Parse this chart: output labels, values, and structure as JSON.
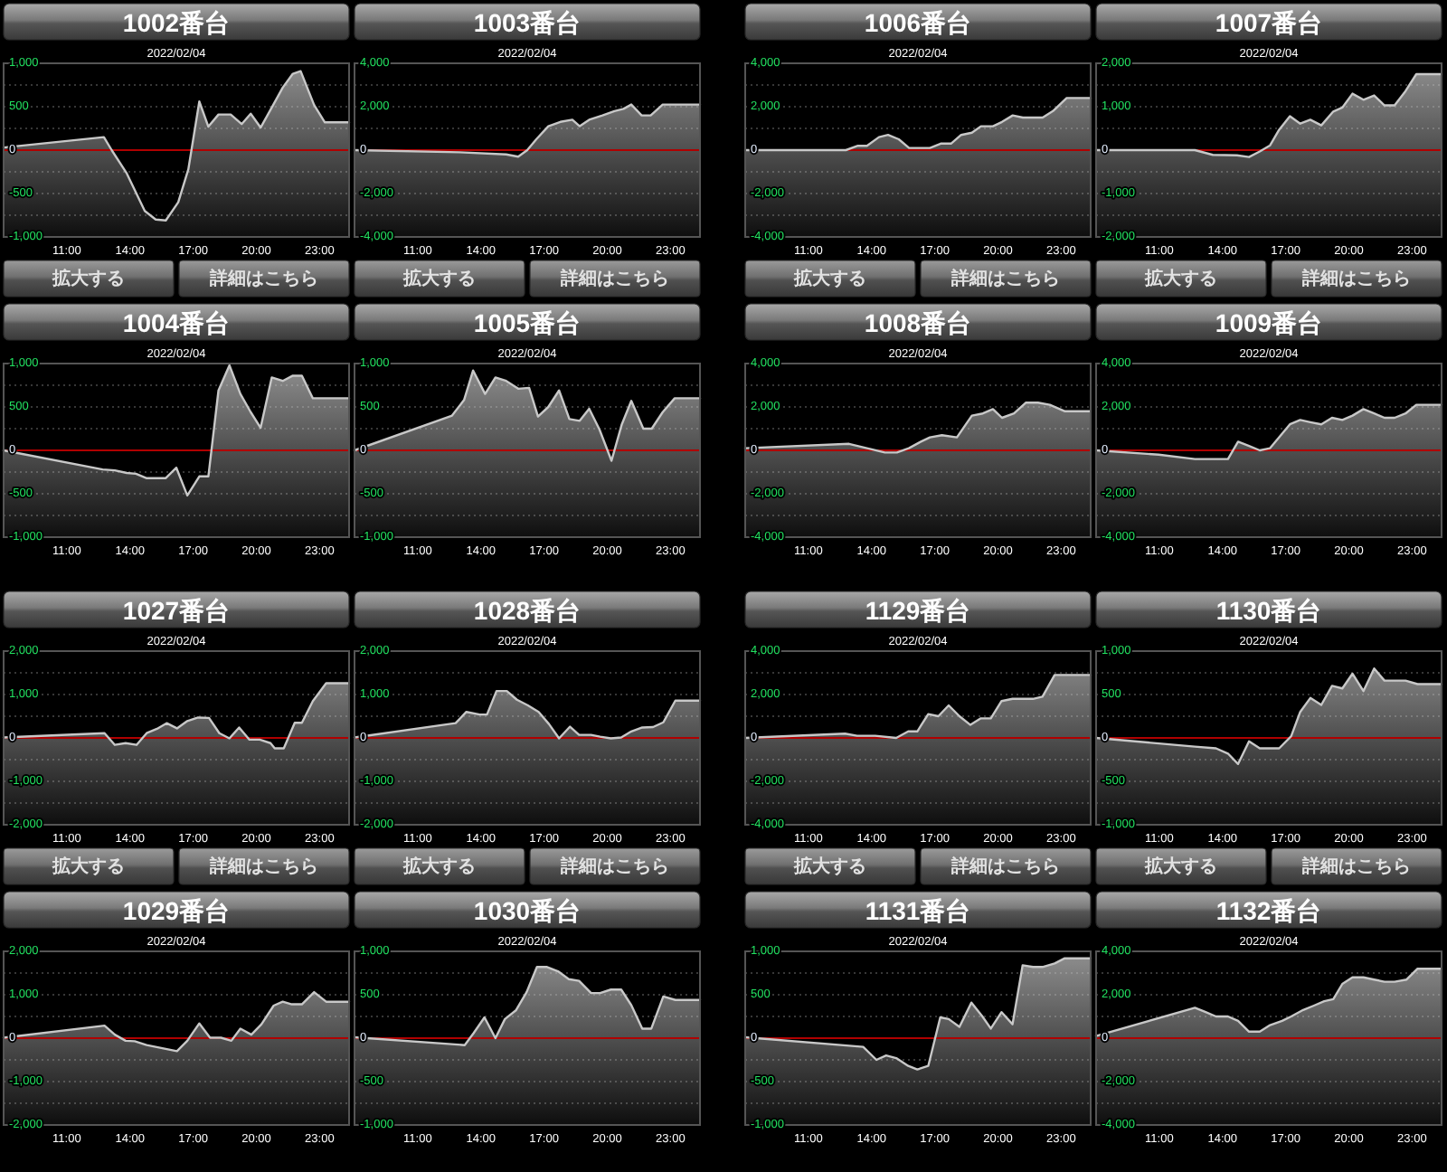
{
  "chart_data": [
    {
      "type": "line",
      "title": "1002番台",
      "subtitle": "2022/02/04",
      "color": "#c8c8c8",
      "grid": "y",
      "xlim": [
        8,
        24.4
      ],
      "xticks": [
        {
          "value": 11,
          "label": "11:00"
        },
        {
          "value": 14,
          "label": "14:00"
        },
        {
          "value": 17,
          "label": "17:00"
        },
        {
          "value": 20,
          "label": "20:00"
        },
        {
          "value": 23,
          "label": "23:00"
        }
      ],
      "ylim": [
        -1000,
        1000
      ],
      "yticks": [
        {
          "value": 1000,
          "label": "1,000"
        },
        {
          "value": 750,
          "label": null
        },
        500,
        {
          "value": 250,
          "label": null
        },
        0,
        {
          "value": -250,
          "label": null
        },
        -500,
        {
          "value": -750,
          "label": null
        },
        {
          "value": -1000,
          "label": "-1,000"
        }
      ],
      "ref_lines": [
        {
          "axis": "y",
          "value": 0,
          "color": "#b00000"
        }
      ],
      "annotations": [
        "拡大する",
        "詳細はこちら"
      ],
      "x": [
        8,
        12.76,
        13.13,
        13.85,
        14.7,
        15.22,
        15.7,
        16.29,
        16.77,
        17.29,
        17.72,
        18.2,
        18.78,
        19.3,
        19.73,
        20.2,
        20.73,
        21.25,
        21.73,
        22.1,
        22.74,
        23.25,
        24.4
      ],
      "values": [
        30,
        150,
        0,
        -270,
        -700,
        -800,
        -810,
        -600,
        -220,
        560,
        270,
        410,
        410,
        300,
        420,
        260,
        490,
        720,
        880,
        910,
        520,
        320,
        320
      ]
    },
    {
      "type": "line",
      "title": "1003番台",
      "subtitle": "2022/02/04",
      "color": "#c8c8c8",
      "grid": "y",
      "xlim": [
        8,
        24.4
      ],
      "xticks": [
        {
          "value": 11,
          "label": "11:00"
        },
        {
          "value": 14,
          "label": "14:00"
        },
        {
          "value": 17,
          "label": "17:00"
        },
        {
          "value": 20,
          "label": "20:00"
        },
        {
          "value": 23,
          "label": "23:00"
        }
      ],
      "ylim": [
        -4000,
        4000
      ],
      "yticks": [
        {
          "value": 4000,
          "label": "4,000"
        },
        {
          "value": 3000,
          "label": null
        },
        {
          "value": 2000,
          "label": "2,000"
        },
        {
          "value": 1000,
          "label": null
        },
        0,
        {
          "value": -1000,
          "label": null
        },
        {
          "value": -2000,
          "label": "-2,000"
        },
        {
          "value": -3000,
          "label": null
        },
        {
          "value": -4000,
          "label": "-4,000"
        }
      ],
      "ref_lines": [
        {
          "axis": "y",
          "value": 0,
          "color": "#b00000"
        }
      ],
      "annotations": [
        "拡大する",
        "詳細はこちら"
      ],
      "x": [
        8,
        13,
        15.2,
        15.77,
        16.2,
        16.63,
        17.2,
        17.77,
        18.34,
        18.69,
        19.14,
        19.77,
        20.34,
        20.77,
        21.14,
        21.63,
        22.06,
        22.63,
        23.2,
        24.4
      ],
      "values": [
        0,
        -100,
        -200,
        -300,
        0,
        500,
        1100,
        1300,
        1400,
        1100,
        1400,
        1600,
        1800,
        1900,
        2100,
        1600,
        1600,
        2100,
        2100,
        2100
      ]
    },
    {
      "type": "line",
      "title": "1004番台",
      "subtitle": "2022/02/04",
      "color": "#c8c8c8",
      "grid": "y",
      "xlim": [
        8,
        24.4
      ],
      "xticks": [
        {
          "value": 11,
          "label": "11:00"
        },
        {
          "value": 14,
          "label": "14:00"
        },
        {
          "value": 17,
          "label": "17:00"
        },
        {
          "value": 20,
          "label": "20:00"
        },
        {
          "value": 23,
          "label": "23:00"
        }
      ],
      "ylim": [
        -1000,
        1000
      ],
      "yticks": [
        {
          "value": 1000,
          "label": "1,000"
        },
        {
          "value": 750,
          "label": null
        },
        500,
        {
          "value": 250,
          "label": null
        },
        0,
        {
          "value": -250,
          "label": null
        },
        -500,
        {
          "value": -750,
          "label": null
        },
        {
          "value": -1000,
          "label": "-1,000"
        }
      ],
      "ref_lines": [
        {
          "axis": "y",
          "value": 0,
          "color": "#b00000"
        }
      ],
      "x": [
        8,
        12.7,
        13.28,
        13.85,
        14.28,
        14.77,
        15.7,
        16.2,
        16.72,
        17.29,
        17.72,
        18.2,
        18.72,
        19.24,
        19.73,
        20.2,
        20.73,
        21.25,
        21.73,
        22.16,
        22.68,
        24.4
      ],
      "values": [
        0,
        -220,
        -230,
        -260,
        -270,
        -320,
        -320,
        -200,
        -520,
        -300,
        -300,
        690,
        980,
        650,
        440,
        260,
        840,
        800,
        860,
        860,
        600,
        600
      ]
    },
    {
      "type": "line",
      "title": "1005番台",
      "subtitle": "2022/02/04",
      "color": "#c8c8c8",
      "grid": "y",
      "xlim": [
        8,
        24.4
      ],
      "xticks": [
        {
          "value": 11,
          "label": "11:00"
        },
        {
          "value": 14,
          "label": "14:00"
        },
        {
          "value": 17,
          "label": "17:00"
        },
        {
          "value": 20,
          "label": "20:00"
        },
        {
          "value": 23,
          "label": "23:00"
        }
      ],
      "ylim": [
        -1000,
        1000
      ],
      "yticks": [
        {
          "value": 1000,
          "label": "1,000"
        },
        {
          "value": 750,
          "label": null
        },
        500,
        {
          "value": 250,
          "label": null
        },
        0,
        {
          "value": -250,
          "label": null
        },
        -500,
        {
          "value": -750,
          "label": null
        },
        {
          "value": -1000,
          "label": "-1,000"
        }
      ],
      "ref_lines": [
        {
          "axis": "y",
          "value": 0,
          "color": "#b00000"
        }
      ],
      "x": [
        8,
        12.63,
        13.2,
        13.63,
        14.2,
        14.69,
        15.2,
        15.77,
        16.29,
        16.71,
        17.2,
        17.71,
        18.2,
        18.69,
        19.14,
        19.63,
        20.2,
        20.69,
        21.14,
        21.71,
        22.11,
        22.63,
        23.2,
        24.4
      ],
      "values": [
        0,
        400,
        580,
        920,
        650,
        840,
        800,
        710,
        720,
        390,
        500,
        690,
        360,
        340,
        480,
        240,
        -120,
        300,
        570,
        250,
        250,
        440,
        600,
        600
      ]
    },
    {
      "type": "line",
      "title": "1006番台",
      "subtitle": "2022/02/04",
      "color": "#c8c8c8",
      "grid": "y",
      "xlim": [
        8,
        24.4
      ],
      "xticks": [
        {
          "value": 11,
          "label": "11:00"
        },
        {
          "value": 14,
          "label": "14:00"
        },
        {
          "value": 17,
          "label": "17:00"
        },
        {
          "value": 20,
          "label": "20:00"
        },
        {
          "value": 23,
          "label": "23:00"
        }
      ],
      "ylim": [
        -4000,
        4000
      ],
      "yticks": [
        {
          "value": 4000,
          "label": "4,000"
        },
        {
          "value": 3000,
          "label": null
        },
        {
          "value": 2000,
          "label": "2,000"
        },
        {
          "value": 1000,
          "label": null
        },
        0,
        {
          "value": -1000,
          "label": null
        },
        {
          "value": -2000,
          "label": "-2,000"
        },
        {
          "value": -3000,
          "label": null
        },
        {
          "value": -4000,
          "label": "-4,000"
        }
      ],
      "ref_lines": [
        {
          "axis": "y",
          "value": 0,
          "color": "#b00000"
        }
      ],
      "annotations": [
        "拡大する",
        "詳細はこちら"
      ],
      "x": [
        8,
        12.78,
        13.35,
        13.78,
        14.35,
        14.78,
        15.29,
        15.78,
        16.34,
        16.77,
        17.28,
        17.77,
        18.25,
        18.76,
        19.19,
        19.76,
        20.19,
        20.7,
        21.18,
        21.67,
        22.12,
        22.61,
        23.26,
        24.4
      ],
      "values": [
        0,
        0,
        200,
        200,
        600,
        700,
        500,
        100,
        100,
        100,
        300,
        300,
        700,
        800,
        1100,
        1100,
        1300,
        1600,
        1500,
        1500,
        1500,
        1800,
        2400,
        2400
      ]
    },
    {
      "type": "line",
      "title": "1007番台",
      "subtitle": "2022/02/04",
      "color": "#c8c8c8",
      "grid": "y",
      "xlim": [
        8,
        24.4
      ],
      "xticks": [
        {
          "value": 11,
          "label": "11:00"
        },
        {
          "value": 14,
          "label": "14:00"
        },
        {
          "value": 17,
          "label": "17:00"
        },
        {
          "value": 20,
          "label": "20:00"
        },
        {
          "value": 23,
          "label": "23:00"
        }
      ],
      "ylim": [
        -2000,
        2000
      ],
      "yticks": [
        {
          "value": 2000,
          "label": "2,000"
        },
        {
          "value": 1500,
          "label": null
        },
        {
          "value": 1000,
          "label": "1,000"
        },
        {
          "value": 500,
          "label": null
        },
        0,
        {
          "value": -500,
          "label": null
        },
        {
          "value": -1000,
          "label": "-1,000"
        },
        {
          "value": -1500,
          "label": null
        },
        {
          "value": -2000,
          "label": "-2,000"
        }
      ],
      "ref_lines": [
        {
          "axis": "y",
          "value": 0,
          "color": "#b00000"
        }
      ],
      "annotations": [
        "拡大する",
        "詳細はこちら"
      ],
      "x": [
        8,
        12.69,
        13.54,
        14.69,
        15.26,
        15.77,
        16.26,
        16.69,
        17.2,
        17.69,
        18.17,
        18.69,
        19.26,
        19.69,
        20.17,
        20.69,
        21.2,
        21.69,
        22.17,
        22.69,
        23.2,
        24.4
      ],
      "values": [
        0,
        0,
        -110,
        -120,
        -160,
        -30,
        110,
        470,
        780,
        610,
        700,
        570,
        890,
        980,
        1300,
        1160,
        1260,
        1030,
        1030,
        1360,
        1750,
        1750
      ]
    },
    {
      "type": "line",
      "title": "1008番台",
      "subtitle": "2022/02/04",
      "color": "#c8c8c8",
      "grid": "y",
      "xlim": [
        8,
        24.4
      ],
      "xticks": [
        {
          "value": 11,
          "label": "11:00"
        },
        {
          "value": 14,
          "label": "14:00"
        },
        {
          "value": 17,
          "label": "17:00"
        },
        {
          "value": 20,
          "label": "20:00"
        },
        {
          "value": 23,
          "label": "23:00"
        }
      ],
      "ylim": [
        -4000,
        4000
      ],
      "yticks": [
        {
          "value": 4000,
          "label": "4,000"
        },
        {
          "value": 3000,
          "label": null
        },
        {
          "value": 2000,
          "label": "2,000"
        },
        {
          "value": 1000,
          "label": null
        },
        0,
        {
          "value": -1000,
          "label": null
        },
        {
          "value": -2000,
          "label": "-2,000"
        },
        {
          "value": -3000,
          "label": null
        },
        {
          "value": -4000,
          "label": "-4,000"
        }
      ],
      "ref_lines": [
        {
          "axis": "y",
          "value": 0,
          "color": "#b00000"
        }
      ],
      "x": [
        8,
        12.93,
        13.78,
        14.63,
        15.2,
        15.77,
        16.34,
        16.77,
        17.34,
        18.05,
        18.76,
        19.28,
        19.76,
        20.19,
        20.76,
        21.33,
        21.9,
        22.46,
        23.18,
        24.4
      ],
      "values": [
        100,
        300,
        100,
        -100,
        -100,
        100,
        400,
        600,
        700,
        600,
        1600,
        1700,
        1900,
        1500,
        1700,
        2200,
        2200,
        2100,
        1800,
        1800
      ]
    },
    {
      "type": "line",
      "title": "1009番台",
      "subtitle": "2022/02/04",
      "color": "#c8c8c8",
      "grid": "y",
      "xlim": [
        8,
        24.4
      ],
      "xticks": [
        {
          "value": 11,
          "label": "11:00"
        },
        {
          "value": 14,
          "label": "14:00"
        },
        {
          "value": 17,
          "label": "17:00"
        },
        {
          "value": 20,
          "label": "20:00"
        },
        {
          "value": 23,
          "label": "23:00"
        }
      ],
      "ylim": [
        -4000,
        4000
      ],
      "yticks": [
        {
          "value": 4000,
          "label": "4,000"
        },
        {
          "value": 3000,
          "label": null
        },
        {
          "value": 2000,
          "label": "2,000"
        },
        {
          "value": 1000,
          "label": null
        },
        0,
        {
          "value": -1000,
          "label": null
        },
        {
          "value": -2000,
          "label": "-2,000"
        },
        {
          "value": -3000,
          "label": null
        },
        {
          "value": -4000,
          "label": "-4,000"
        }
      ],
      "ref_lines": [
        {
          "axis": "y",
          "value": 0,
          "color": "#b00000"
        }
      ],
      "x": [
        8,
        10.97,
        12.69,
        14.26,
        14.74,
        15.26,
        15.77,
        16.26,
        16.69,
        17.2,
        17.69,
        18.17,
        18.69,
        19.2,
        19.69,
        20.17,
        20.69,
        21.2,
        21.69,
        22.17,
        22.69,
        23.2,
        24.4
      ],
      "values": [
        0,
        -200,
        -400,
        -400,
        400,
        200,
        0,
        100,
        600,
        1200,
        1400,
        1300,
        1200,
        1500,
        1400,
        1600,
        1900,
        1700,
        1500,
        1500,
        1700,
        2100,
        2100
      ]
    },
    {
      "type": "line",
      "title": "1027番台",
      "subtitle": "2022/02/04",
      "color": "#c8c8c8",
      "grid": "y",
      "xlim": [
        8,
        24.4
      ],
      "xticks": [
        {
          "value": 11,
          "label": "11:00"
        },
        {
          "value": 14,
          "label": "14:00"
        },
        {
          "value": 17,
          "label": "17:00"
        },
        {
          "value": 20,
          "label": "20:00"
        },
        {
          "value": 23,
          "label": "23:00"
        }
      ],
      "ylim": [
        -2000,
        2000
      ],
      "yticks": [
        {
          "value": 2000,
          "label": "2,000"
        },
        {
          "value": 1500,
          "label": null
        },
        {
          "value": 1000,
          "label": "1,000"
        },
        {
          "value": 500,
          "label": null
        },
        0,
        {
          "value": -500,
          "label": null
        },
        {
          "value": -1000,
          "label": "-1,000"
        },
        {
          "value": -1500,
          "label": null
        },
        {
          "value": -2000,
          "label": "-2,000"
        }
      ],
      "ref_lines": [
        {
          "axis": "y",
          "value": 0,
          "color": "#b00000"
        }
      ],
      "annotations": [
        "拡大する",
        "詳細はこちら"
      ],
      "x": [
        8,
        12.79,
        13.28,
        13.79,
        14.31,
        14.79,
        15.28,
        15.74,
        16.23,
        16.72,
        17.23,
        17.75,
        18.24,
        18.72,
        19.18,
        19.67,
        20.16,
        20.67,
        20.87,
        21.3,
        21.82,
        22.16,
        22.68,
        23.31,
        24.4
      ],
      "values": [
        10,
        110,
        -160,
        -120,
        -160,
        110,
        210,
        340,
        220,
        390,
        470,
        460,
        110,
        -10,
        240,
        -40,
        -40,
        -120,
        -240,
        -240,
        350,
        350,
        850,
        1260,
        1260
      ]
    },
    {
      "type": "line",
      "title": "1028番台",
      "subtitle": "2022/02/04",
      "color": "#c8c8c8",
      "grid": "y",
      "xlim": [
        8,
        24.4
      ],
      "xticks": [
        {
          "value": 11,
          "label": "11:00"
        },
        {
          "value": 14,
          "label": "14:00"
        },
        {
          "value": 17,
          "label": "17:00"
        },
        {
          "value": 20,
          "label": "20:00"
        },
        {
          "value": 23,
          "label": "23:00"
        }
      ],
      "ylim": [
        -2000,
        2000
      ],
      "yticks": [
        {
          "value": 2000,
          "label": "2,000"
        },
        {
          "value": 1500,
          "label": null
        },
        {
          "value": 1000,
          "label": "1,000"
        },
        {
          "value": 500,
          "label": null
        },
        0,
        {
          "value": -500,
          "label": null
        },
        {
          "value": -1000,
          "label": "-1,000"
        },
        {
          "value": -1500,
          "label": null
        },
        {
          "value": -2000,
          "label": "-2,000"
        }
      ],
      "ref_lines": [
        {
          "axis": "y",
          "value": 0,
          "color": "#b00000"
        }
      ],
      "annotations": [
        "拡大する",
        "詳細はこちら"
      ],
      "x": [
        8,
        12.8,
        13.31,
        13.94,
        14.29,
        14.74,
        15.23,
        15.71,
        16.23,
        16.74,
        17.23,
        17.71,
        18.23,
        18.66,
        19.23,
        19.66,
        20.17,
        20.66,
        21.14,
        21.66,
        22.17,
        22.66,
        23.23,
        24.4
      ],
      "values": [
        10,
        340,
        600,
        540,
        540,
        1080,
        1080,
        880,
        750,
        600,
        320,
        -10,
        260,
        70,
        70,
        30,
        -10,
        10,
        150,
        240,
        250,
        360,
        860,
        860
      ]
    },
    {
      "type": "line",
      "title": "1029番台",
      "subtitle": "2022/02/04",
      "color": "#c8c8c8",
      "grid": "y",
      "xlim": [
        8,
        24.4
      ],
      "xticks": [
        {
          "value": 11,
          "label": "11:00"
        },
        {
          "value": 14,
          "label": "14:00"
        },
        {
          "value": 17,
          "label": "17:00"
        },
        {
          "value": 20,
          "label": "20:00"
        },
        {
          "value": 23,
          "label": "23:00"
        }
      ],
      "ylim": [
        -2000,
        2000
      ],
      "yticks": [
        {
          "value": 2000,
          "label": "2,000"
        },
        {
          "value": 1500,
          "label": null
        },
        {
          "value": 1000,
          "label": "1,000"
        },
        {
          "value": 500,
          "label": null
        },
        0,
        {
          "value": -500,
          "label": null
        },
        {
          "value": -1000,
          "label": "-1,000"
        },
        {
          "value": -1500,
          "label": null
        },
        {
          "value": -2000,
          "label": "-2,000"
        }
      ],
      "ref_lines": [
        {
          "axis": "y",
          "value": 0,
          "color": "#b00000"
        }
      ],
      "x": [
        8,
        12.79,
        13.28,
        13.79,
        14.22,
        14.79,
        16.23,
        16.72,
        17.29,
        17.8,
        18.32,
        18.81,
        19.24,
        19.76,
        20.24,
        20.82,
        21.25,
        21.68,
        22.16,
        22.74,
        23.31,
        24.4
      ],
      "values": [
        10,
        290,
        80,
        -60,
        -70,
        -160,
        -300,
        -60,
        340,
        10,
        10,
        -60,
        220,
        80,
        320,
        750,
        840,
        780,
        780,
        1060,
        840,
        840
      ]
    },
    {
      "type": "line",
      "title": "1030番台",
      "subtitle": "2022/02/04",
      "color": "#c8c8c8",
      "grid": "y",
      "xlim": [
        8,
        24.4
      ],
      "xticks": [
        {
          "value": 11,
          "label": "11:00"
        },
        {
          "value": 14,
          "label": "14:00"
        },
        {
          "value": 17,
          "label": "17:00"
        },
        {
          "value": 20,
          "label": "20:00"
        },
        {
          "value": 23,
          "label": "23:00"
        }
      ],
      "ylim": [
        -1000,
        1000
      ],
      "yticks": [
        {
          "value": 1000,
          "label": "1,000"
        },
        {
          "value": 750,
          "label": null
        },
        500,
        {
          "value": 250,
          "label": null
        },
        0,
        {
          "value": -250,
          "label": null
        },
        -500,
        {
          "value": -750,
          "label": null
        },
        {
          "value": -1000,
          "label": "-1,000"
        }
      ],
      "ref_lines": [
        {
          "axis": "y",
          "value": 0,
          "color": "#b00000"
        }
      ],
      "x": [
        8,
        13.23,
        13.66,
        14.17,
        14.69,
        15.14,
        15.66,
        16.17,
        16.66,
        17.14,
        17.66,
        18.17,
        18.66,
        19.23,
        19.66,
        20.17,
        20.66,
        21.14,
        21.66,
        22.09,
        22.66,
        23.23,
        24.4
      ],
      "values": [
        10,
        -80,
        60,
        240,
        0,
        220,
        320,
        530,
        820,
        820,
        770,
        680,
        660,
        520,
        520,
        560,
        560,
        380,
        110,
        110,
        480,
        440,
        440
      ]
    },
    {
      "type": "line",
      "title": "1129番台",
      "subtitle": "2022/02/04",
      "color": "#c8c8c8",
      "grid": "y",
      "xlim": [
        8,
        24.4
      ],
      "xticks": [
        {
          "value": 11,
          "label": "11:00"
        },
        {
          "value": 14,
          "label": "14:00"
        },
        {
          "value": 17,
          "label": "17:00"
        },
        {
          "value": 20,
          "label": "20:00"
        },
        {
          "value": 23,
          "label": "23:00"
        }
      ],
      "ylim": [
        -4000,
        4000
      ],
      "yticks": [
        {
          "value": 4000,
          "label": "4,000"
        },
        {
          "value": 3000,
          "label": null
        },
        {
          "value": 2000,
          "label": "2,000"
        },
        {
          "value": 1000,
          "label": null
        },
        0,
        {
          "value": -1000,
          "label": null
        },
        {
          "value": -2000,
          "label": "-2,000"
        },
        {
          "value": -3000,
          "label": null
        },
        {
          "value": -4000,
          "label": "-4,000"
        }
      ],
      "ref_lines": [
        {
          "axis": "y",
          "value": 0,
          "color": "#b00000"
        }
      ],
      "annotations": [
        "拡大する",
        "詳細はこちら"
      ],
      "x": [
        8,
        12.74,
        13.31,
        14.17,
        15.17,
        15.74,
        16.17,
        16.69,
        17.17,
        17.66,
        18.17,
        18.69,
        19.17,
        19.66,
        20.17,
        20.69,
        21.17,
        21.66,
        22.11,
        22.69,
        24.4
      ],
      "values": [
        0,
        200,
        100,
        100,
        0,
        300,
        300,
        1100,
        1000,
        1500,
        1000,
        600,
        900,
        900,
        1700,
        1800,
        1800,
        1800,
        1900,
        2900,
        2900
      ]
    },
    {
      "type": "line",
      "title": "1130番台",
      "subtitle": "2022/02/04",
      "color": "#c8c8c8",
      "grid": "y",
      "xlim": [
        8,
        24.4
      ],
      "xticks": [
        {
          "value": 11,
          "label": "11:00"
        },
        {
          "value": 14,
          "label": "14:00"
        },
        {
          "value": 17,
          "label": "17:00"
        },
        {
          "value": 20,
          "label": "20:00"
        },
        {
          "value": 23,
          "label": "23:00"
        }
      ],
      "ylim": [
        -1000,
        1000
      ],
      "yticks": [
        {
          "value": 1000,
          "label": "1,000"
        },
        {
          "value": 750,
          "label": null
        },
        500,
        {
          "value": 250,
          "label": null
        },
        0,
        {
          "value": -250,
          "label": null
        },
        -500,
        {
          "value": -750,
          "label": null
        },
        {
          "value": -1000,
          "label": "-1,000"
        }
      ],
      "ref_lines": [
        {
          "axis": "y",
          "value": 0,
          "color": "#b00000"
        }
      ],
      "annotations": [
        "拡大する",
        "詳細はこちら"
      ],
      "x": [
        8,
        12.69,
        13.69,
        14.26,
        14.74,
        15.26,
        15.77,
        16.26,
        16.69,
        17.26,
        17.69,
        18.17,
        18.69,
        19.2,
        19.69,
        20.17,
        20.69,
        21.2,
        21.69,
        22.17,
        22.69,
        23.26,
        24.4
      ],
      "values": [
        0,
        -100,
        -120,
        -180,
        -300,
        -40,
        -120,
        -120,
        -120,
        20,
        300,
        460,
        380,
        600,
        570,
        740,
        540,
        800,
        660,
        660,
        660,
        620,
        620
      ]
    },
    {
      "type": "line",
      "title": "1131番台",
      "subtitle": "2022/02/04",
      "color": "#c8c8c8",
      "grid": "y",
      "xlim": [
        8,
        24.4
      ],
      "xticks": [
        {
          "value": 11,
          "label": "11:00"
        },
        {
          "value": 14,
          "label": "14:00"
        },
        {
          "value": 17,
          "label": "17:00"
        },
        {
          "value": 20,
          "label": "20:00"
        },
        {
          "value": 23,
          "label": "23:00"
        }
      ],
      "ylim": [
        -1000,
        1000
      ],
      "yticks": [
        {
          "value": 1000,
          "label": "1,000"
        },
        {
          "value": 750,
          "label": null
        },
        500,
        {
          "value": 250,
          "label": null
        },
        0,
        {
          "value": -250,
          "label": null
        },
        -500,
        {
          "value": -750,
          "label": null
        },
        {
          "value": -1000,
          "label": "-1,000"
        }
      ],
      "ref_lines": [
        {
          "axis": "y",
          "value": 0,
          "color": "#b00000"
        }
      ],
      "x": [
        8,
        13.6,
        14.23,
        14.69,
        15.17,
        15.74,
        16.17,
        16.69,
        17.26,
        17.66,
        18.17,
        18.74,
        19.26,
        19.66,
        20.17,
        20.69,
        21.17,
        21.66,
        22.11,
        22.69,
        23.17,
        24.4
      ],
      "values": [
        10,
        -100,
        -250,
        -200,
        -230,
        -320,
        -360,
        -320,
        240,
        220,
        130,
        410,
        250,
        110,
        300,
        160,
        840,
        820,
        820,
        860,
        920,
        920
      ]
    },
    {
      "type": "line",
      "title": "1132番台",
      "subtitle": "2022/02/04",
      "color": "#c8c8c8",
      "grid": "y",
      "xlim": [
        8,
        24.4
      ],
      "xticks": [
        {
          "value": 11,
          "label": "11:00"
        },
        {
          "value": 14,
          "label": "14:00"
        },
        {
          "value": 17,
          "label": "17:00"
        },
        {
          "value": 20,
          "label": "20:00"
        },
        {
          "value": 23,
          "label": "23:00"
        }
      ],
      "ylim": [
        -4000,
        4000
      ],
      "yticks": [
        {
          "value": 4000,
          "label": "4,000"
        },
        {
          "value": 3000,
          "label": null
        },
        {
          "value": 2000,
          "label": "2,000"
        },
        {
          "value": 1000,
          "label": null
        },
        0,
        {
          "value": -1000,
          "label": null
        },
        {
          "value": -2000,
          "label": "-2,000"
        },
        {
          "value": -3000,
          "label": null
        },
        {
          "value": -4000,
          "label": "-4,000"
        }
      ],
      "ref_lines": [
        {
          "axis": "y",
          "value": 0,
          "color": "#b00000"
        }
      ],
      "x": [
        8,
        12.69,
        13.2,
        13.69,
        14.26,
        14.74,
        15.26,
        15.77,
        16.26,
        16.83,
        17.26,
        17.83,
        18.34,
        18.83,
        19.26,
        19.69,
        20.17,
        20.69,
        21.2,
        21.69,
        22.17,
        22.74,
        23.26,
        24.4
      ],
      "values": [
        100,
        1400,
        1200,
        1000,
        1000,
        800,
        300,
        300,
        600,
        800,
        1000,
        1300,
        1500,
        1700,
        1800,
        2500,
        2800,
        2800,
        2700,
        2600,
        2600,
        2700,
        3200,
        3200
      ]
    }
  ]
}
